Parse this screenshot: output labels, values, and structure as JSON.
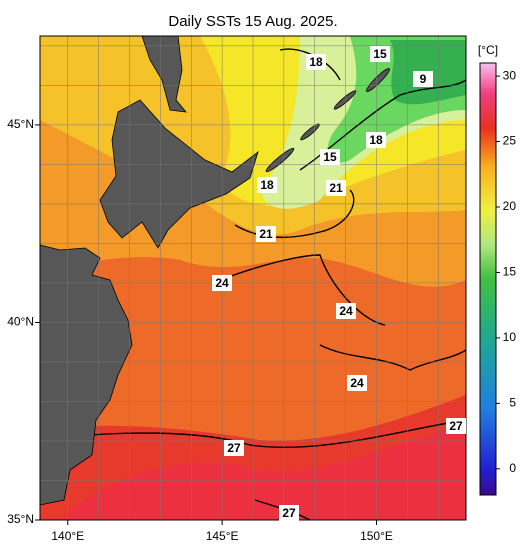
{
  "title": "Daily SSTs 15 Aug. 2025.",
  "lon_range": [
    139.1,
    152.9
  ],
  "lat_range": [
    35,
    47.25
  ],
  "lon_ticks": [
    {
      "value": 140,
      "label": "140°E"
    },
    {
      "value": 145,
      "label": "145°E"
    },
    {
      "value": 150,
      "label": "150°E"
    }
  ],
  "lat_ticks": [
    {
      "value": 35,
      "label": "35°N"
    },
    {
      "value": 40,
      "label": "40°N"
    },
    {
      "value": 45,
      "label": "45°N"
    }
  ],
  "colorbar": {
    "unit": "[°C]",
    "range": [
      -2,
      31
    ],
    "ticks": [
      0,
      5,
      10,
      15,
      20,
      25,
      30
    ]
  },
  "contour_labels": [
    18,
    15,
    9,
    18,
    15,
    18,
    21,
    21,
    24,
    24,
    24,
    27,
    27,
    27
  ]
}
